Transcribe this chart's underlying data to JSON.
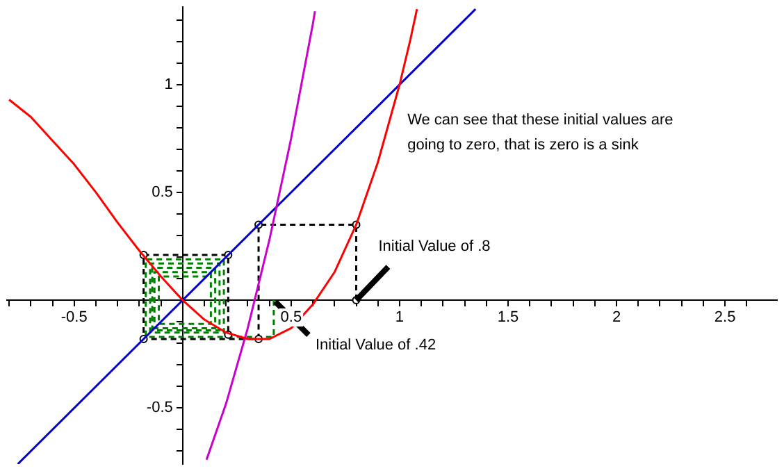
{
  "chart_data": {
    "type": "line",
    "xlim": [
      -0.81,
      2.74
    ],
    "ylim": [
      -0.76,
      1.36
    ],
    "xticks": [
      {
        "value": -0.8,
        "label": null
      },
      {
        "value": -0.7,
        "label": null
      },
      {
        "value": -0.6,
        "label": null
      },
      -0.5,
      {
        "value": -0.4,
        "label": null
      },
      {
        "value": -0.3,
        "label": null
      },
      {
        "value": -0.2,
        "label": null
      },
      {
        "value": -0.1,
        "label": null
      },
      {
        "value": 0.1,
        "label": null
      },
      {
        "value": 0.2,
        "label": null
      },
      {
        "value": 0.3,
        "label": null
      },
      {
        "value": 0.4,
        "label": null
      },
      0.5,
      {
        "value": 0.6,
        "label": null
      },
      {
        "value": 0.7,
        "label": null
      },
      {
        "value": 0.8,
        "label": null
      },
      {
        "value": 0.9,
        "label": null
      },
      1,
      {
        "value": 1.1,
        "label": null
      },
      {
        "value": 1.2,
        "label": null
      },
      {
        "value": 1.3,
        "label": null
      },
      {
        "value": 1.4,
        "label": null
      },
      1.5,
      {
        "value": 1.6,
        "label": null
      },
      {
        "value": 1.7,
        "label": null
      },
      {
        "value": 1.8,
        "label": null
      },
      {
        "value": 1.9,
        "label": null
      },
      2,
      {
        "value": 2.1,
        "label": null
      },
      {
        "value": 2.2,
        "label": null
      },
      {
        "value": 2.3,
        "label": null
      },
      {
        "value": 2.4,
        "label": null
      },
      2.5,
      {
        "value": 2.6,
        "label": null
      }
    ],
    "yticks": [
      {
        "value": -0.7,
        "label": null
      },
      {
        "value": -0.6,
        "label": null
      },
      -0.5,
      {
        "value": -0.4,
        "label": null
      },
      {
        "value": -0.3,
        "label": null
      },
      {
        "value": -0.2,
        "label": null
      },
      {
        "value": -0.1,
        "label": null
      },
      {
        "value": 0.1,
        "label": null
      },
      {
        "value": 0.2,
        "label": null
      },
      {
        "value": 0.3,
        "label": null
      },
      {
        "value": 0.4,
        "label": null
      },
      0.5,
      {
        "value": 0.6,
        "label": null
      },
      {
        "value": 0.7,
        "label": null
      },
      {
        "value": 0.8,
        "label": null
      },
      {
        "value": 0.9,
        "label": null
      },
      1,
      {
        "value": 1.1,
        "label": null
      },
      {
        "value": 1.2,
        "label": null
      },
      {
        "value": 1.3,
        "label": null
      }
    ],
    "grid": false,
    "legend": false,
    "series": [
      {
        "color": "#ff0000",
        "x": [
          -0.8,
          -0.7,
          -0.6,
          -0.5,
          -0.4,
          -0.3,
          -0.2,
          -0.1,
          0,
          0.1,
          0.2,
          0.3,
          0.4,
          0.5,
          0.6,
          0.7,
          0.8,
          0.9,
          1,
          1.05,
          1.08
        ],
        "values": [
          0.93,
          0.85,
          0.74,
          0.63,
          0.5,
          0.36,
          0.23,
          0.11,
          0,
          -0.09,
          -0.15,
          -0.18,
          -0.18,
          -0.13,
          -0.02,
          0.13,
          0.35,
          0.64,
          1,
          1.21,
          1.35
        ]
      },
      {
        "color": "#cc00cc",
        "x": [
          0.11,
          0.2,
          0.3,
          0.4,
          0.5,
          0.6,
          0.61
        ],
        "values": [
          -0.74,
          -0.48,
          -0.13,
          0.28,
          0.75,
          1.28,
          1.34
        ]
      },
      {
        "color": "#0000cc",
        "x": [
          -0.76,
          1.35
        ],
        "values": [
          -0.76,
          1.35
        ]
      },
      {
        "color": "#000000",
        "line_style": "dashed",
        "marker": "circle",
        "x": [
          0.8,
          0.8,
          0.35,
          0.35,
          -0.18,
          -0.18,
          0.21,
          0.21
        ],
        "values": [
          0,
          0.35,
          0.35,
          -0.18,
          -0.18,
          0.21,
          0.21,
          -0.16
        ]
      },
      {
        "color": "#008000",
        "line_style": "dashed",
        "x": [
          0.42,
          0.42,
          -0.17,
          -0.17,
          0.19,
          0.19,
          -0.15,
          -0.15,
          0.17,
          0.17,
          -0.14,
          -0.14,
          0.15,
          0.15,
          -0.13,
          -0.13,
          0.13,
          0.13,
          -0.11,
          -0.11,
          0.11
        ],
        "values": [
          0,
          -0.17,
          -0.17,
          0.19,
          0.19,
          -0.15,
          -0.15,
          0.17,
          0.17,
          -0.14,
          -0.14,
          0.15,
          0.15,
          -0.13,
          -0.13,
          0.13,
          0.13,
          -0.11,
          -0.11,
          0.11,
          0.11
        ]
      }
    ],
    "annotations": [
      {
        "text": "Initial Value of .8",
        "x": 0.8,
        "y": 0
      },
      {
        "text": "Initial Value of .42",
        "x": 0.42,
        "y": 0
      },
      "We can see that these initial values are going to zero, that is zero is a sink"
    ]
  }
}
